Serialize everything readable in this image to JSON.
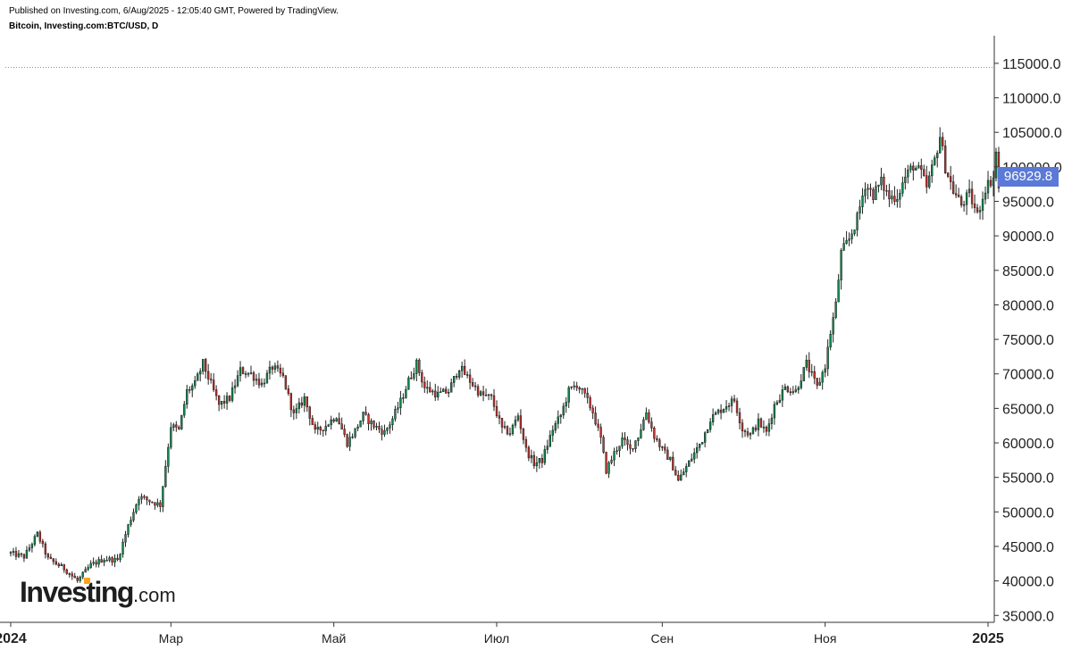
{
  "header": {
    "published": "Published on Investing.com, 6/Aug/2025 - 12:05:40 GMT, Powered by TradingView.",
    "symbol": "Bitcoin, Investing.com:BTC/USD, D"
  },
  "logo": {
    "brand": "Investing",
    "tld": ".com"
  },
  "colors": {
    "up": "#0f8a4f",
    "down": "#c8302a",
    "wick": "#222222",
    "axis": "#333333",
    "badge": "#5b79d6",
    "hline": "#7a90e0"
  },
  "chart_data": {
    "type": "candlestick",
    "y_tick_labels": [
      "115000.0",
      "110000.0",
      "105000.0",
      "100000.0",
      "95000.0",
      "90000.0",
      "85000.0",
      "80000.0",
      "75000.0",
      "70000.0",
      "65000.0",
      "60000.0",
      "55000.0",
      "50000.0",
      "45000.0",
      "40000.0",
      "35000.0"
    ],
    "y_ticks": [
      115000,
      110000,
      105000,
      100000,
      95000,
      90000,
      85000,
      80000,
      75000,
      70000,
      65000,
      60000,
      55000,
      50000,
      45000,
      40000,
      35000
    ],
    "ylim": [
      34000,
      119000
    ],
    "x_tick_labels": [
      {
        "label": "2024",
        "day": 0,
        "bold": true
      },
      {
        "label": "Мар",
        "day": 60,
        "bold": false
      },
      {
        "label": "Май",
        "day": 121,
        "bold": false
      },
      {
        "label": "Июл",
        "day": 182,
        "bold": false
      },
      {
        "label": "Сен",
        "day": 244,
        "bold": false
      },
      {
        "label": "Ноя",
        "day": 305,
        "bold": false
      },
      {
        "label": "2025",
        "day": 366,
        "bold": true
      }
    ],
    "xlim_days": [
      -2,
      368
    ],
    "last_price": 96929.8,
    "last_price_label": "96929.8",
    "horizontal_line": 114400,
    "close_anchors": [
      [
        0,
        44000
      ],
      [
        5,
        43500
      ],
      [
        10,
        46800
      ],
      [
        14,
        43200
      ],
      [
        20,
        41800
      ],
      [
        25,
        40000
      ],
      [
        30,
        42300
      ],
      [
        35,
        43200
      ],
      [
        40,
        43000
      ],
      [
        44,
        48000
      ],
      [
        48,
        52200
      ],
      [
        52,
        51600
      ],
      [
        56,
        51000
      ],
      [
        60,
        62500
      ],
      [
        63,
        61800
      ],
      [
        66,
        67500
      ],
      [
        69,
        68500
      ],
      [
        72,
        71500
      ],
      [
        75,
        68500
      ],
      [
        78,
        65500
      ],
      [
        82,
        66500
      ],
      [
        86,
        70500
      ],
      [
        90,
        70000
      ],
      [
        94,
        68500
      ],
      [
        98,
        71000
      ],
      [
        102,
        69500
      ],
      [
        106,
        64000
      ],
      [
        110,
        66500
      ],
      [
        114,
        61500
      ],
      [
        118,
        62500
      ],
      [
        122,
        64000
      ],
      [
        126,
        60000
      ],
      [
        129,
        61800
      ],
      [
        132,
        64000
      ],
      [
        136,
        62500
      ],
      [
        140,
        61500
      ],
      [
        143,
        63500
      ],
      [
        146,
        66000
      ],
      [
        149,
        69000
      ],
      [
        152,
        71500
      ],
      [
        155,
        68000
      ],
      [
        160,
        67000
      ],
      [
        164,
        67500
      ],
      [
        168,
        71000
      ],
      [
        172,
        69000
      ],
      [
        176,
        67000
      ],
      [
        180,
        66500
      ],
      [
        184,
        62000
      ],
      [
        187,
        61500
      ],
      [
        190,
        64000
      ],
      [
        193,
        59000
      ],
      [
        196,
        57000
      ],
      [
        199,
        57500
      ],
      [
        203,
        62000
      ],
      [
        206,
        64000
      ],
      [
        209,
        67500
      ],
      [
        212,
        68500
      ],
      [
        215,
        66800
      ],
      [
        218,
        64500
      ],
      [
        221,
        60500
      ],
      [
        223,
        56000
      ],
      [
        226,
        58500
      ],
      [
        229,
        60500
      ],
      [
        232,
        59000
      ],
      [
        235,
        61000
      ],
      [
        238,
        64500
      ],
      [
        241,
        61000
      ],
      [
        244,
        59000
      ],
      [
        247,
        57500
      ],
      [
        250,
        54500
      ],
      [
        253,
        56500
      ],
      [
        256,
        58500
      ],
      [
        259,
        60500
      ],
      [
        262,
        63500
      ],
      [
        265,
        64500
      ],
      [
        268,
        65500
      ],
      [
        271,
        66200
      ],
      [
        274,
        62000
      ],
      [
        277,
        61200
      ],
      [
        280,
        63000
      ],
      [
        283,
        61500
      ],
      [
        286,
        65500
      ],
      [
        290,
        68000
      ],
      [
        294,
        67500
      ],
      [
        298,
        71500
      ],
      [
        302,
        68000
      ],
      [
        305,
        71200
      ],
      [
        307,
        76000
      ],
      [
        309,
        80000
      ],
      [
        311,
        87500
      ],
      [
        314,
        89500
      ],
      [
        317,
        92500
      ],
      [
        320,
        97500
      ],
      [
        323,
        96000
      ],
      [
        326,
        97800
      ],
      [
        329,
        95500
      ],
      [
        332,
        95800
      ],
      [
        335,
        98500
      ],
      [
        338,
        100200
      ],
      [
        341,
        99000
      ],
      [
        343,
        97000
      ],
      [
        346,
        101000
      ],
      [
        348,
        104500
      ],
      [
        350,
        100000
      ],
      [
        353,
        96500
      ],
      [
        356,
        94500
      ],
      [
        359,
        96000
      ],
      [
        362,
        93000
      ],
      [
        365,
        97000
      ],
      [
        368,
        98500
      ],
      [
        369,
        102000
      ],
      [
        370,
        96929.8
      ]
    ]
  }
}
